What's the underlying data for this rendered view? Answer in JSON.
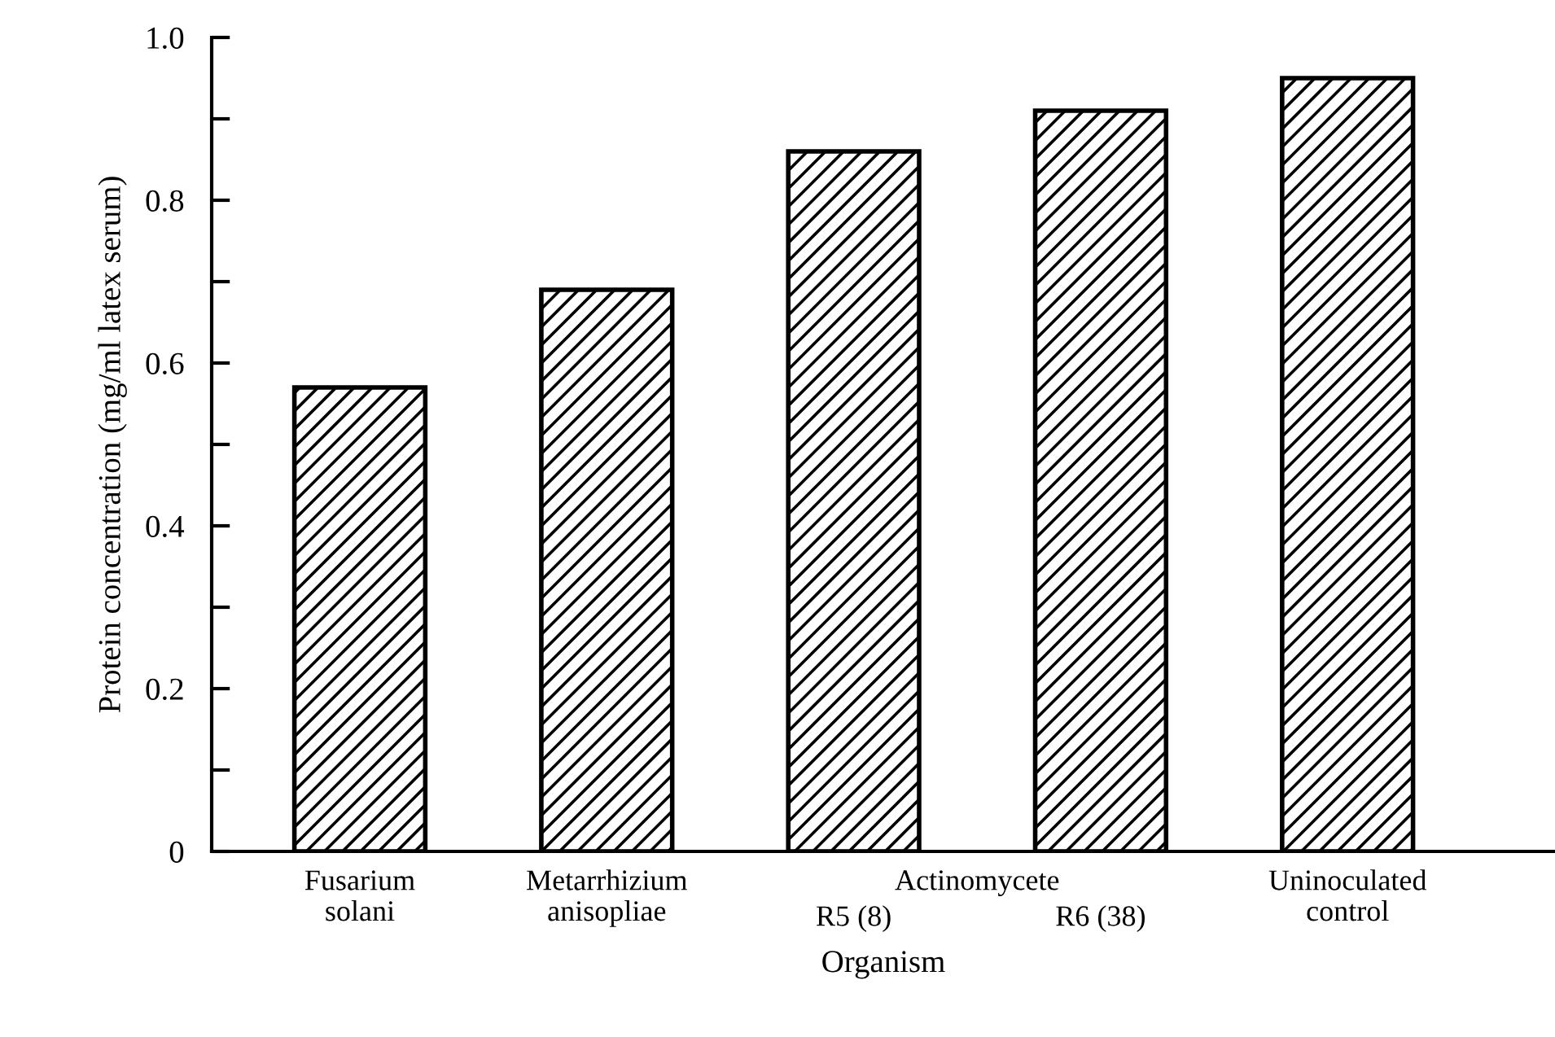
{
  "chart_data": {
    "type": "bar",
    "categories": [
      "Fusarium\nsolani",
      "Metarrhizium\nanisopliae",
      "R5 (8)",
      "R6 (38)",
      "Uninoculated\ncontrol"
    ],
    "values": [
      0.57,
      0.69,
      0.86,
      0.91,
      0.95
    ],
    "color": "#000000",
    "xlabel": "Organism",
    "ylabel": "Protein concentration (mg/ml latex serum)",
    "annotations": [
      "Actinomycete"
    ],
    "ylim": [
      0,
      1.0
    ],
    "yticks": [
      0,
      {
        "value": 0.1,
        "label": null
      },
      0.2,
      {
        "value": 0.3,
        "label": null
      },
      0.4,
      {
        "value": 0.5,
        "label": null
      },
      0.6,
      {
        "value": 0.7,
        "label": null
      },
      0.8,
      {
        "value": 0.9,
        "label": null
      },
      {
        "value": 1.0,
        "label": "1.0"
      }
    ],
    "grid": false,
    "legend": false
  }
}
